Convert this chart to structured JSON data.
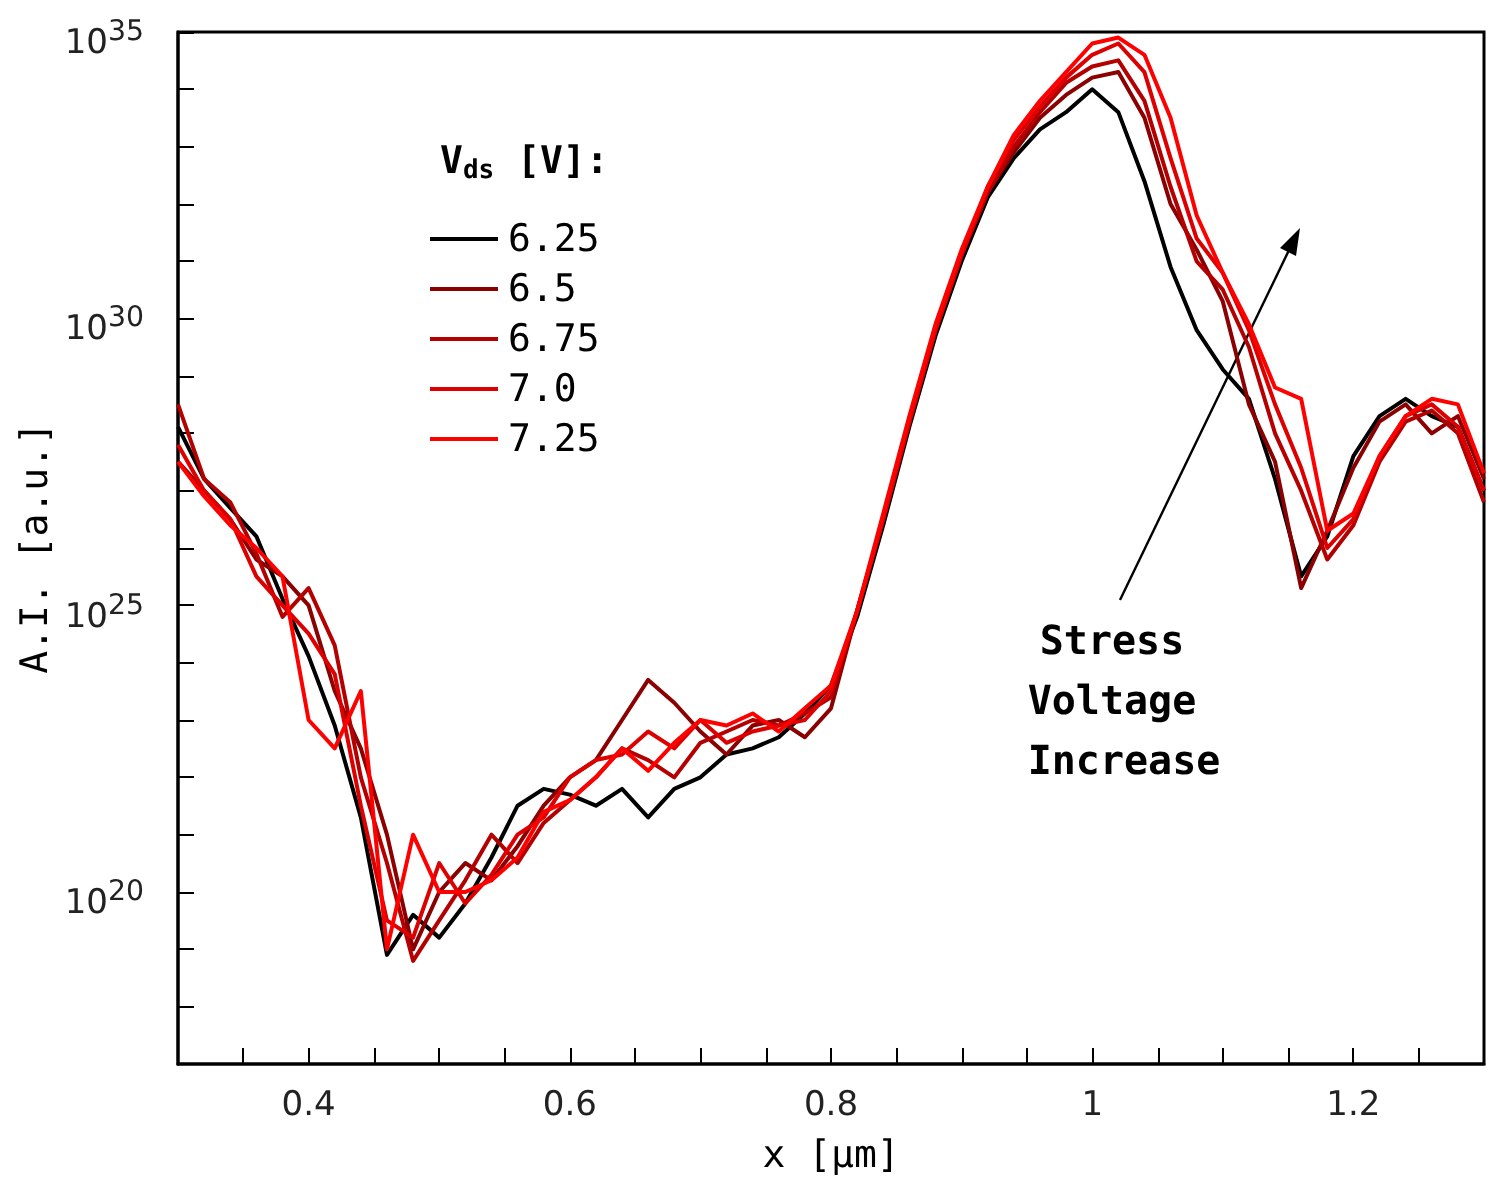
{
  "chart_data": {
    "type": "line",
    "xlabel": "x [μm]",
    "ylabel": "A.I. [a.u.]",
    "legend_title": "V$_{ds}$ [V]:",
    "legend": "top left",
    "log": "y",
    "annotations": [
      "Stress Voltage Increase"
    ],
    "xlim": [
      0.3,
      1.3
    ],
    "xticks": [
      {
        "value": 0.35,
        "label": null
      },
      0.4,
      {
        "value": 0.45,
        "label": null
      },
      0.6,
      {
        "value": 0.5,
        "label": null
      },
      {
        "value": 0.55,
        "label": null
      },
      {
        "value": 0.65,
        "label": null
      },
      {
        "value": 0.7,
        "label": null
      },
      {
        "value": 0.75,
        "label": null
      },
      0.8,
      {
        "value": 0.85,
        "label": null
      },
      {
        "value": 0.9,
        "label": null
      },
      {
        "value": 0.95,
        "label": null
      },
      1,
      {
        "value": 1.05,
        "label": null
      },
      {
        "value": 1.1,
        "label": null
      },
      {
        "value": 1.15,
        "label": null
      },
      1.2,
      {
        "value": 1.25,
        "label": null
      }
    ],
    "ylim": [
      1e+17,
      1e+35
    ],
    "yticks": [
      {
        "value": 1e+18,
        "label": null
      },
      {
        "value": 1e+19,
        "label": null
      },
      {
        "value": 1e+20,
        "label": "10$^{20}$"
      },
      {
        "value": 1e+21,
        "label": null
      },
      {
        "value": 1e+22,
        "label": null
      },
      {
        "value": 1e+23,
        "label": null
      },
      {
        "value": 1e+24,
        "label": null
      },
      {
        "value": 1e+25,
        "label": "10$^{25}$"
      },
      {
        "value": 1e+26,
        "label": null
      },
      {
        "value": 1e+27,
        "label": null
      },
      {
        "value": 1e+28,
        "label": null
      },
      {
        "value": 1e+29,
        "label": null
      },
      {
        "value": 1e+30,
        "label": "10$^{30}$"
      },
      {
        "value": 1e+31,
        "label": null
      },
      {
        "value": 1e+32,
        "label": null
      },
      {
        "value": 1e+33,
        "label": null
      },
      {
        "value": 1e+34,
        "label": null
      },
      {
        "value": 1e+35,
        "label": "10$^{35}$"
      }
    ],
    "x": [
      0.3,
      0.32,
      0.34,
      0.36,
      0.38,
      0.4,
      0.42,
      0.44,
      0.46,
      0.48,
      0.5,
      0.52,
      0.54,
      0.56,
      0.58,
      0.6,
      0.62,
      0.64,
      0.66,
      0.68,
      0.7,
      0.72,
      0.74,
      0.76,
      0.78,
      0.8,
      0.82,
      0.84,
      0.86,
      0.88,
      0.9,
      0.92,
      0.94,
      0.96,
      0.98,
      1.0,
      1.02,
      1.04,
      1.06,
      1.08,
      1.1,
      1.12,
      1.14,
      1.16,
      1.18,
      1.2,
      1.22,
      1.24,
      1.26,
      1.28,
      1.3
    ],
    "series": [
      {
        "name": "6.25",
        "color": "#000000",
        "values": [
          1.3e+28,
          1.6e+27,
          5e+26,
          1.6e+26,
          1.3e+25,
          1.3e+24,
          8e+22,
          2e+21,
          8e+18,
          4e+19,
          1.6e+19,
          6.3e+19,
          4e+20,
          3.2e+21,
          6.3e+21,
          5e+21,
          3.2e+21,
          6.3e+21,
          2e+21,
          6.3e+21,
          1e+22,
          2.5e+22,
          3.2e+22,
          5e+22,
          1.3e+23,
          4e+23,
          6.3e+24,
          2.5e+26,
          1.3e+28,
          5e+29,
          1e+31,
          1.3e+32,
          6.3e+32,
          2e+33,
          4e+33,
          1e+34,
          4e+33,
          2.5e+32,
          8e+30,
          6.3e+29,
          1.3e+29,
          4e+28,
          1.6e+27,
          3.2e+25,
          1.6e+26,
          4e+27,
          2e+28,
          4e+28,
          2e+28,
          1.3e+28,
          1e+27
        ]
      },
      {
        "name": "6.5",
        "color": "#8b0000",
        "values": [
          3.2e+27,
          1e+27,
          3.2e+26,
          6.3e+25,
          3.2e+25,
          1e+25,
          3.2e+23,
          3.2e+22,
          1e+21,
          1e+19,
          1e+20,
          3.2e+20,
          1.6e+20,
          6.3e+20,
          3.2e+21,
          1e+22,
          2e+22,
          1e+23,
          5e+23,
          2e+23,
          6.3e+22,
          2.5e+22,
          8e+22,
          1e+23,
          5e+22,
          1.6e+23,
          8e+24,
          3.2e+26,
          1.6e+28,
          6.3e+29,
          1.3e+31,
          1.6e+32,
          8e+32,
          3.2e+33,
          8e+33,
          1.6e+34,
          2e+34,
          3.2e+33,
          1e+32,
          1.6e+31,
          2e+30,
          3.2e+28,
          3.2e+27,
          2e+25,
          2e+26,
          2.5e+27,
          1.6e+28,
          3.2e+28,
          1e+28,
          2e+28,
          1.6e+27
        ]
      },
      {
        "name": "6.75",
        "color": "#b40000",
        "values": [
          3.2e+28,
          1.6e+27,
          6.3e+26,
          8e+25,
          6.3e+24,
          2e+25,
          2e+24,
          1e+22,
          3.2e+20,
          6.3e+18,
          3.2e+19,
          1.6e+20,
          1e+21,
          3.2e+20,
          1.6e+21,
          4e+21,
          1e+22,
          3.2e+22,
          2e+22,
          1e+22,
          4e+22,
          6.3e+22,
          1e+23,
          8e+22,
          1.3e+23,
          2.5e+23,
          8e+24,
          3.2e+26,
          1.6e+28,
          6.3e+29,
          1.3e+31,
          1.6e+32,
          1e+33,
          4e+33,
          1.3e+34,
          2.5e+34,
          3.2e+34,
          6.3e+33,
          2e+32,
          1e+31,
          3.2e+30,
          3.2e+29,
          1e+28,
          1e+27,
          6.3e+25,
          2.5e+26,
          3.2e+27,
          1.6e+28,
          2.5e+28,
          1e+28,
          6.3e+26
        ]
      },
      {
        "name": "7.0",
        "color": "#dd0000",
        "values": [
          6.3e+27,
          1e+27,
          3.2e+26,
          3.2e+25,
          1e+25,
          3.2e+24,
          6.3e+23,
          3.2e+21,
          3.2e+19,
          1.6e+19,
          3.2e+20,
          6.3e+19,
          2e+20,
          1e+21,
          2e+21,
          1e+22,
          2e+22,
          2.5e+22,
          6.3e+22,
          3.2e+22,
          1e+23,
          4e+22,
          6.3e+22,
          8e+22,
          1e+23,
          3.2e+23,
          8e+24,
          3.2e+26,
          1.6e+28,
          6.3e+29,
          1.3e+31,
          2e+32,
          1.3e+33,
          5e+33,
          1.6e+34,
          4e+34,
          6.3e+34,
          2e+34,
          6.3e+32,
          2.5e+31,
          6.3e+30,
          6.3e+29,
          3.2e+28,
          2.5e+27,
          1e+26,
          3.2e+26,
          4e+27,
          2e+28,
          3.2e+28,
          1.3e+28,
          1e+27
        ]
      },
      {
        "name": "7.25",
        "color": "#ff0000",
        "values": [
          3.2e+27,
          8e+26,
          2.5e+26,
          1e+26,
          3.2e+25,
          1e+23,
          3.2e+22,
          3.2e+23,
          1e+19,
          1e+21,
          1e+20,
          1e+20,
          1.6e+20,
          4e+20,
          2.5e+21,
          4e+21,
          1e+22,
          3.2e+22,
          1.3e+22,
          4e+22,
          1e+23,
          8e+22,
          1.3e+23,
          6.3e+22,
          1.6e+23,
          4e+23,
          8e+24,
          4e+26,
          2e+28,
          8e+29,
          1.6e+31,
          2e+32,
          1.6e+33,
          6.3e+33,
          2e+34,
          6.3e+34,
          8e+34,
          4e+34,
          3.2e+33,
          6.3e+31,
          6.3e+30,
          8e+29,
          6.3e+28,
          4e+28,
          2e+26,
          4e+26,
          4e+27,
          2e+28,
          4e+28,
          3.2e+28,
          2e+27
        ]
      }
    ]
  }
}
